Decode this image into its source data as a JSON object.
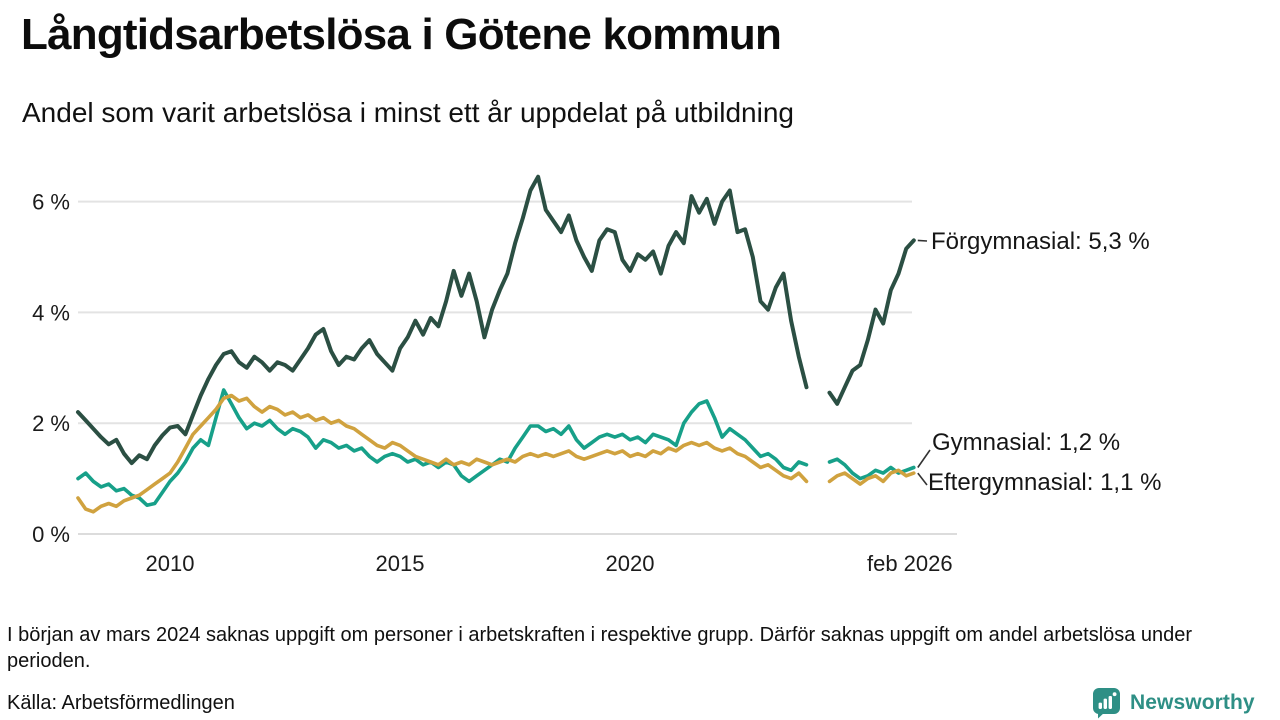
{
  "title": "Långtidsarbetslösa i Götene kommun",
  "subtitle": "Andel som varit arbetslösa i minst ett år uppdelat på utbildning",
  "footnote": "I början av mars 2024 saknas uppgift om personer i arbetskraften i respektive grupp. Därför saknas uppgift om andel arbetslösa under perioden.",
  "source": "Källa: Arbetsförmedlingen",
  "branding": {
    "logo_text": "Newsworthy",
    "logo_color": "#2e8f85",
    "logo_icon": "bar-chart-speech-bubble-icon"
  },
  "chart_data": {
    "type": "line",
    "title": "Långtidsarbetslösa i Götene kommun",
    "subtitle": "Andel som varit arbetslösa i minst ett år uppdelat på utbildning",
    "unit": "%",
    "x_start": 2008.0,
    "x_step_years": 0.1667,
    "x_tick_positions": [
      2010,
      2015,
      2020,
      2026.083
    ],
    "x_tick_labels": [
      "2010",
      "2015",
      "2020",
      "feb 2026"
    ],
    "y_ticks": [
      0,
      2,
      4,
      6
    ],
    "y_tick_labels": [
      "0 %",
      "2 %",
      "4 %",
      "6 %"
    ],
    "ylim": [
      0,
      6.8
    ],
    "grid": true,
    "gap_period": "jan 2024 - apr 2024",
    "legend_position": "end-of-line labels",
    "grid_color": "#e3e3e3",
    "series": [
      {
        "name": "Förgymnasial",
        "end_label": "Förgymnasial: 5,3 %",
        "end_value": 5.3,
        "color": "#2b4f43",
        "values": [
          2.2,
          2.05,
          1.9,
          1.75,
          1.62,
          1.7,
          1.45,
          1.28,
          1.42,
          1.35,
          1.6,
          1.78,
          1.92,
          1.95,
          1.8,
          2.15,
          2.5,
          2.8,
          3.05,
          3.25,
          3.3,
          3.1,
          3.0,
          3.2,
          3.1,
          2.95,
          3.1,
          3.05,
          2.95,
          3.15,
          3.35,
          3.6,
          3.7,
          3.3,
          3.05,
          3.2,
          3.15,
          3.35,
          3.5,
          3.25,
          3.1,
          2.95,
          3.35,
          3.55,
          3.85,
          3.6,
          3.9,
          3.75,
          4.2,
          4.75,
          4.3,
          4.7,
          4.2,
          3.55,
          4.05,
          4.4,
          4.7,
          5.25,
          5.7,
          6.2,
          6.45,
          5.85,
          5.65,
          5.45,
          5.75,
          5.3,
          5.0,
          4.75,
          5.3,
          5.5,
          5.45,
          4.95,
          4.75,
          5.05,
          4.95,
          5.1,
          4.7,
          5.2,
          5.45,
          5.25,
          6.1,
          5.8,
          6.05,
          5.6,
          6.0,
          6.2,
          5.45,
          5.5,
          5.0,
          4.2,
          4.05,
          4.45,
          4.7,
          3.85,
          3.2,
          2.65,
          null,
          null,
          2.55,
          2.35,
          2.65,
          2.95,
          3.05,
          3.5,
          4.05,
          3.8,
          4.4,
          4.7,
          5.15,
          5.3
        ]
      },
      {
        "name": "Gymnasial",
        "end_label": "Gymnasial: 1,2 %",
        "end_value": 1.2,
        "color": "#17a089",
        "values": [
          1.0,
          1.1,
          0.95,
          0.85,
          0.9,
          0.78,
          0.82,
          0.7,
          0.65,
          0.52,
          0.55,
          0.75,
          0.95,
          1.1,
          1.3,
          1.55,
          1.7,
          1.6,
          2.1,
          2.6,
          2.35,
          2.1,
          1.9,
          2.0,
          1.95,
          2.05,
          1.9,
          1.8,
          1.9,
          1.85,
          1.75,
          1.55,
          1.7,
          1.65,
          1.55,
          1.6,
          1.5,
          1.55,
          1.4,
          1.3,
          1.4,
          1.45,
          1.4,
          1.3,
          1.35,
          1.25,
          1.3,
          1.2,
          1.3,
          1.25,
          1.05,
          0.95,
          1.05,
          1.15,
          1.25,
          1.35,
          1.3,
          1.55,
          1.75,
          1.95,
          1.95,
          1.85,
          1.9,
          1.8,
          1.95,
          1.7,
          1.55,
          1.65,
          1.75,
          1.8,
          1.75,
          1.8,
          1.7,
          1.75,
          1.65,
          1.8,
          1.75,
          1.7,
          1.6,
          2.0,
          2.2,
          2.35,
          2.4,
          2.1,
          1.75,
          1.9,
          1.8,
          1.7,
          1.55,
          1.4,
          1.45,
          1.35,
          1.2,
          1.15,
          1.3,
          1.25,
          null,
          null,
          1.3,
          1.35,
          1.25,
          1.1,
          1.0,
          1.05,
          1.15,
          1.1,
          1.2,
          1.1,
          1.15,
          1.2
        ]
      },
      {
        "name": "Eftergymnasial",
        "end_label": "Eftergymnasial: 1,1 %",
        "end_value": 1.1,
        "color": "#d0a23f",
        "values": [
          0.65,
          0.45,
          0.4,
          0.5,
          0.55,
          0.5,
          0.6,
          0.65,
          0.7,
          0.8,
          0.9,
          1.0,
          1.1,
          1.3,
          1.55,
          1.8,
          1.95,
          2.1,
          2.25,
          2.45,
          2.5,
          2.4,
          2.45,
          2.3,
          2.2,
          2.3,
          2.25,
          2.15,
          2.2,
          2.1,
          2.15,
          2.05,
          2.1,
          2.0,
          2.05,
          1.95,
          1.9,
          1.8,
          1.7,
          1.6,
          1.55,
          1.65,
          1.6,
          1.5,
          1.4,
          1.35,
          1.3,
          1.25,
          1.35,
          1.25,
          1.3,
          1.25,
          1.35,
          1.3,
          1.25,
          1.3,
          1.35,
          1.3,
          1.4,
          1.45,
          1.4,
          1.45,
          1.4,
          1.45,
          1.5,
          1.4,
          1.35,
          1.4,
          1.45,
          1.5,
          1.45,
          1.5,
          1.4,
          1.45,
          1.4,
          1.5,
          1.45,
          1.55,
          1.5,
          1.6,
          1.65,
          1.6,
          1.65,
          1.55,
          1.5,
          1.55,
          1.45,
          1.4,
          1.3,
          1.2,
          1.25,
          1.15,
          1.05,
          1.0,
          1.1,
          0.95,
          null,
          null,
          0.95,
          1.05,
          1.1,
          1.0,
          0.9,
          1.0,
          1.05,
          0.95,
          1.1,
          1.15,
          1.05,
          1.1
        ]
      }
    ]
  }
}
